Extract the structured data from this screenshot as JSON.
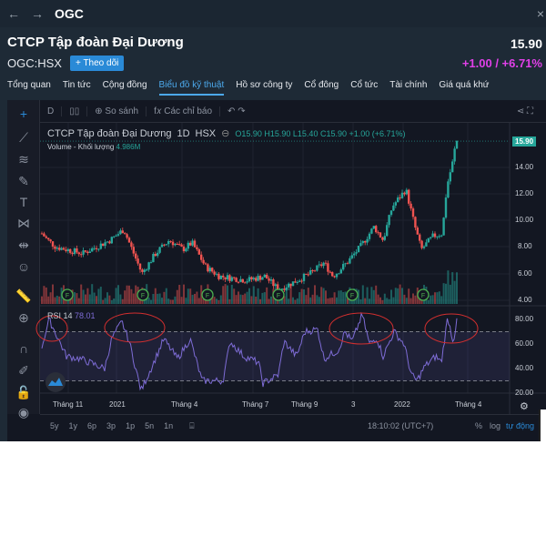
{
  "topbar": {
    "symbol": "OGC",
    "back": "←",
    "forward": "→",
    "close": "×"
  },
  "header": {
    "company": "CTCP Tập đoàn Đại Dương",
    "price": "15.90",
    "ticker": "OGC:HSX",
    "follow": "+ Theo dõi",
    "change": "+1.00 / +6.71%"
  },
  "tabs": [
    "Tổng quan",
    "Tin tức",
    "Cộng đồng",
    "Biểu đồ kỹ thuật",
    "Hồ sơ công ty",
    "Cổ đông",
    "Cổ tức",
    "Tài chính",
    "Giá quá khứ"
  ],
  "active_tab": "Biểu đồ kỹ thuật",
  "toolbar": {
    "interval": "D",
    "compare": "⊕ So sánh",
    "indicators": "f𝑥 Các chỉ báo",
    "undo": "↶ ↷"
  },
  "legend": {
    "name": "CTCP Tập đoàn Đại Dương",
    "interval": "1D",
    "exchange": "HSX",
    "ohlc": "O15.90 H15.90 L15.40 C15.90 +1.00 (+6.71%)",
    "volume_label": "Volume - Khối lượng",
    "volume_value": "4.986M",
    "rsi_label": "RSI 14",
    "rsi_value": "78.01"
  },
  "price_axis": [
    "14.00",
    "12.00",
    "10.00",
    "8.00",
    "6.00",
    "4.00"
  ],
  "last_price_badge": "15.90",
  "rsi_axis": [
    "80.00",
    "60.00",
    "40.00",
    "20.00"
  ],
  "time_axis": [
    "Tháng 11",
    "2021",
    "Tháng 4",
    "Tháng 7",
    "Tháng 9",
    "3",
    "2022",
    "Tháng 4"
  ],
  "dividend_marker": "F",
  "bottombar": {
    "ranges": [
      "5y",
      "1y",
      "6p",
      "3p",
      "1p",
      "5n",
      "1n"
    ],
    "time": "18:10:02 (UTC+7)",
    "percent": "%",
    "log": "log",
    "auto": "tự động"
  },
  "colors": {
    "up": "#26a69a",
    "down": "#ef5350",
    "rsi": "#7e6cd6",
    "accent": "#2a8ad7"
  },
  "chart_data": {
    "type": "candlestick",
    "price_ylim": [
      4,
      15
    ],
    "price_keypoints": [
      [
        0,
        9.0
      ],
      [
        5,
        8.6
      ],
      [
        15,
        8.0
      ],
      [
        45,
        7.5
      ],
      [
        75,
        8.5
      ],
      [
        90,
        9.3
      ],
      [
        110,
        6.0
      ],
      [
        125,
        7.5
      ],
      [
        140,
        8.5
      ],
      [
        155,
        7.8
      ],
      [
        165,
        8.3
      ],
      [
        180,
        6.5
      ],
      [
        195,
        5.8
      ],
      [
        225,
        5.5
      ],
      [
        245,
        5.8
      ],
      [
        260,
        4.8
      ],
      [
        275,
        5.3
      ],
      [
        295,
        6.0
      ],
      [
        310,
        6.8
      ],
      [
        320,
        5.8
      ],
      [
        335,
        6.8
      ],
      [
        350,
        8.0
      ],
      [
        365,
        9.5
      ],
      [
        375,
        8.5
      ],
      [
        385,
        11.0
      ],
      [
        400,
        12.3
      ],
      [
        410,
        9.5
      ],
      [
        417,
        7.8
      ],
      [
        430,
        8.8
      ],
      [
        440,
        9.0
      ],
      [
        445,
        12.5
      ],
      [
        452,
        14.5
      ],
      [
        455,
        15.9
      ]
    ],
    "rsi_ylim": [
      20,
      90
    ],
    "rsi_levels": [
      70,
      30
    ],
    "rsi_keypoints": [
      [
        0,
        58
      ],
      [
        8,
        80
      ],
      [
        27,
        50
      ],
      [
        42,
        48
      ],
      [
        69,
        40
      ],
      [
        77,
        65
      ],
      [
        88,
        78
      ],
      [
        96,
        62
      ],
      [
        109,
        22
      ],
      [
        123,
        45
      ],
      [
        134,
        64
      ],
      [
        149,
        48
      ],
      [
        163,
        64
      ],
      [
        176,
        30
      ],
      [
        199,
        30
      ],
      [
        207,
        62
      ],
      [
        222,
        50
      ],
      [
        238,
        45
      ],
      [
        243,
        28
      ],
      [
        260,
        35
      ],
      [
        266,
        62
      ],
      [
        280,
        50
      ],
      [
        289,
        70
      ],
      [
        303,
        72
      ],
      [
        310,
        48
      ],
      [
        326,
        55
      ],
      [
        333,
        70
      ],
      [
        341,
        62
      ],
      [
        352,
        84
      ],
      [
        360,
        60
      ],
      [
        368,
        65
      ],
      [
        375,
        50
      ],
      [
        387,
        70
      ],
      [
        398,
        60
      ],
      [
        406,
        35
      ],
      [
        412,
        30
      ],
      [
        421,
        42
      ],
      [
        433,
        50
      ],
      [
        439,
        45
      ],
      [
        446,
        82
      ],
      [
        452,
        62
      ],
      [
        456,
        78
      ]
    ]
  }
}
